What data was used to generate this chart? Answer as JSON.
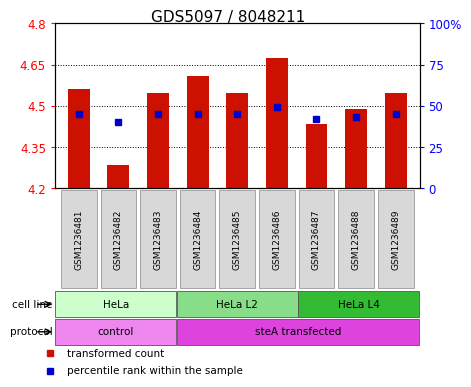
{
  "title": "GDS5097 / 8048211",
  "samples": [
    "GSM1236481",
    "GSM1236482",
    "GSM1236483",
    "GSM1236484",
    "GSM1236485",
    "GSM1236486",
    "GSM1236487",
    "GSM1236488",
    "GSM1236489"
  ],
  "red_values": [
    4.56,
    4.285,
    4.545,
    4.61,
    4.545,
    4.675,
    4.435,
    4.49,
    4.545
  ],
  "blue_pct": [
    45,
    40,
    45,
    45,
    45,
    49,
    42,
    43,
    45
  ],
  "ylim_left": [
    4.2,
    4.8
  ],
  "ylim_right": [
    0,
    100
  ],
  "yticks_left": [
    4.2,
    4.35,
    4.5,
    4.65,
    4.8
  ],
  "yticks_right": [
    0,
    25,
    50,
    75,
    100
  ],
  "ytick_labels_left": [
    "4.2",
    "4.35",
    "4.5",
    "4.65",
    "4.8"
  ],
  "ytick_labels_right": [
    "0",
    "25",
    "50",
    "75",
    "100%"
  ],
  "bar_color": "#cc1100",
  "dot_color": "#0000cc",
  "bar_bottom": 4.2,
  "cell_line_groups": [
    {
      "label": "HeLa",
      "start": 0,
      "end": 3,
      "color": "#ccffcc"
    },
    {
      "label": "HeLa L2",
      "start": 3,
      "end": 6,
      "color": "#88dd88"
    },
    {
      "label": "HeLa L4",
      "start": 6,
      "end": 9,
      "color": "#33bb33"
    }
  ],
  "protocol_groups": [
    {
      "label": "control",
      "start": 0,
      "end": 3,
      "color": "#ee88ee"
    },
    {
      "label": "steA transfected",
      "start": 3,
      "end": 9,
      "color": "#dd44dd"
    }
  ],
  "legend_items": [
    {
      "label": "transformed count",
      "color": "#cc1100"
    },
    {
      "label": "percentile rank within the sample",
      "color": "#0000cc"
    }
  ],
  "cell_line_label": "cell line",
  "protocol_label": "protocol",
  "sample_bg_color": "#d8d8d8",
  "plot_bg": "#ffffff",
  "title_fontsize": 11,
  "tick_fontsize": 8.5,
  "label_fontsize": 7.5,
  "bar_width": 0.55
}
